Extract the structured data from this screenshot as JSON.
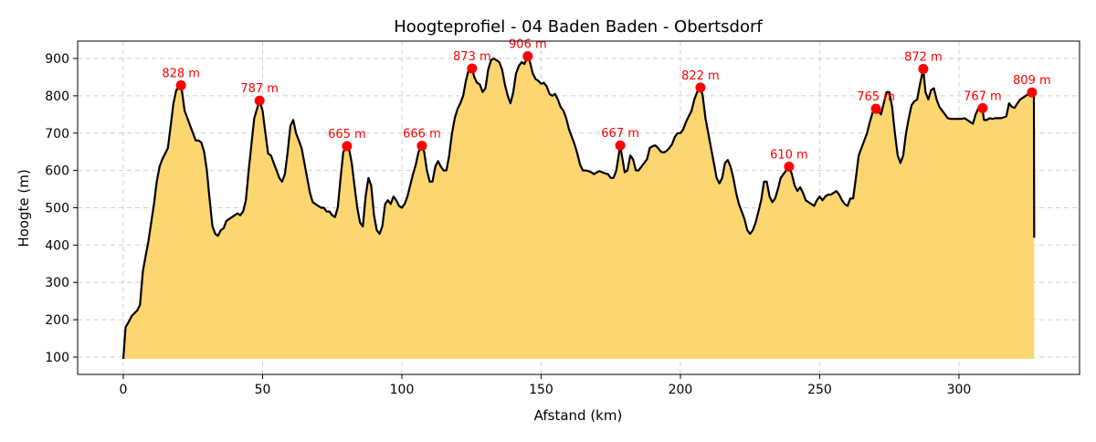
{
  "chart_data": {
    "type": "area",
    "title": "Hoogteprofiel - 04 Baden Baden - Obertsdorf",
    "xlabel": "Afstand (km)",
    "ylabel": "Hoogte (m)",
    "xlim": [
      -16.4,
      343.3
    ],
    "ylim": [
      53.5,
      946.5
    ],
    "xticks": [
      0,
      50,
      100,
      150,
      200,
      250,
      300
    ],
    "yticks": [
      100,
      200,
      300,
      400,
      500,
      600,
      700,
      800,
      900
    ],
    "grid": true,
    "colors": {
      "fill": "#fcd468",
      "line": "#000000",
      "peak": "#ff0000",
      "grid": "#d0d0d0"
    },
    "fill_baseline": 95,
    "x": [
      0,
      0.8,
      2,
      3,
      5,
      6,
      7,
      8,
      9,
      10,
      11,
      12,
      13,
      14,
      15,
      16,
      17,
      18,
      19,
      20.7,
      21,
      22,
      23,
      24,
      25,
      26,
      27,
      28,
      29,
      30,
      31,
      32,
      33,
      34,
      35,
      36,
      37,
      38,
      40,
      41,
      42,
      43,
      44,
      45,
      46,
      47,
      48.9,
      50,
      51,
      52,
      53,
      54,
      55,
      56,
      57,
      58,
      59,
      60,
      61,
      62,
      63,
      64,
      65,
      66,
      67,
      68,
      70,
      71,
      72,
      73,
      74,
      75,
      76,
      77,
      78,
      79,
      80.3,
      81,
      82,
      83,
      84,
      85,
      86,
      87,
      88,
      89,
      90,
      91,
      92,
      93,
      94,
      95,
      96,
      97,
      98,
      99,
      100,
      101,
      102,
      103,
      104,
      105,
      106,
      107.2,
      108,
      109,
      110,
      111,
      112,
      113,
      114,
      115,
      116,
      117,
      118,
      119,
      120,
      121,
      122,
      123,
      124,
      125.2,
      126,
      127,
      128,
      129,
      130,
      131,
      132,
      133,
      134,
      135,
      136,
      137,
      138,
      139,
      140,
      141,
      142,
      143,
      144,
      145.2,
      146,
      147,
      148,
      149,
      150,
      151,
      152,
      153,
      154,
      155,
      156,
      157,
      158,
      159,
      160,
      161,
      162,
      163,
      164,
      165,
      166,
      167,
      168,
      169,
      170,
      171,
      172,
      173,
      174,
      175,
      176,
      177,
      178.4,
      179,
      180,
      181,
      182,
      183,
      184,
      185,
      186,
      187,
      188,
      189,
      190,
      191,
      192,
      193,
      194,
      195,
      196,
      197,
      198,
      199,
      200,
      201,
      202,
      203,
      204,
      205,
      206,
      207.2,
      208,
      209,
      210,
      211,
      212,
      213,
      214,
      215,
      216,
      217,
      218,
      219,
      220,
      221,
      222,
      223,
      224,
      225,
      226,
      227,
      228,
      229,
      230,
      231,
      232,
      233,
      234,
      235,
      236,
      237,
      238,
      239,
      240,
      241,
      242,
      243,
      244,
      245,
      246,
      247,
      248,
      249,
      250,
      251,
      252,
      253,
      254,
      255,
      256,
      257,
      258,
      259,
      260,
      261,
      262,
      263,
      264,
      265,
      266,
      267,
      268,
      269,
      270.2,
      271,
      272,
      273,
      274,
      275,
      276,
      277,
      278,
      279,
      280,
      281,
      282,
      283,
      284,
      285,
      286,
      287.2,
      288,
      289,
      290,
      291,
      292,
      293,
      294,
      295,
      296,
      297,
      298,
      299,
      300,
      301,
      302,
      303,
      304,
      305,
      306,
      307,
      308.5,
      309,
      310,
      311,
      312,
      313,
      314,
      315,
      316,
      317,
      318,
      319,
      320,
      321,
      322,
      323,
      324,
      325,
      326.2,
      326.9,
      327
    ],
    "y": [
      95,
      180,
      195,
      210,
      225,
      240,
      330,
      370,
      410,
      460,
      510,
      570,
      610,
      630,
      645,
      660,
      720,
      780,
      815,
      828,
      815,
      760,
      740,
      720,
      700,
      680,
      680,
      675,
      650,
      600,
      520,
      450,
      430,
      425,
      440,
      445,
      465,
      470,
      480,
      485,
      480,
      490,
      520,
      600,
      670,
      740,
      787,
      760,
      700,
      645,
      640,
      620,
      600,
      580,
      570,
      590,
      650,
      720,
      735,
      700,
      680,
      660,
      620,
      580,
      540,
      515,
      505,
      500,
      500,
      490,
      490,
      480,
      475,
      500,
      580,
      650,
      665,
      660,
      620,
      560,
      500,
      460,
      450,
      530,
      580,
      560,
      480,
      440,
      430,
      450,
      510,
      520,
      510,
      530,
      520,
      505,
      500,
      510,
      530,
      560,
      590,
      615,
      650,
      666,
      650,
      600,
      570,
      570,
      610,
      625,
      610,
      600,
      600,
      640,
      700,
      740,
      765,
      780,
      800,
      840,
      870,
      873,
      850,
      835,
      830,
      810,
      820,
      870,
      895,
      900,
      895,
      890,
      870,
      830,
      800,
      780,
      810,
      860,
      880,
      890,
      885,
      906,
      890,
      860,
      845,
      840,
      832,
      835,
      825,
      805,
      800,
      805,
      790,
      770,
      760,
      740,
      710,
      690,
      670,
      645,
      615,
      600,
      600,
      598,
      595,
      590,
      595,
      598,
      595,
      592,
      590,
      580,
      580,
      600,
      667,
      640,
      595,
      600,
      640,
      630,
      600,
      600,
      610,
      620,
      630,
      660,
      665,
      667,
      660,
      650,
      648,
      652,
      660,
      670,
      690,
      700,
      700,
      710,
      730,
      745,
      760,
      790,
      810,
      822,
      800,
      740,
      700,
      660,
      620,
      580,
      565,
      580,
      620,
      628,
      610,
      580,
      540,
      510,
      490,
      470,
      440,
      430,
      440,
      460,
      490,
      520,
      570,
      570,
      530,
      515,
      525,
      550,
      580,
      590,
      600,
      610,
      590,
      560,
      545,
      555,
      540,
      520,
      515,
      510,
      505,
      520,
      530,
      520,
      530,
      535,
      535,
      540,
      545,
      535,
      520,
      510,
      505,
      525,
      525,
      580,
      640,
      660,
      680,
      700,
      730,
      755,
      765,
      760,
      750,
      780,
      810,
      810,
      770,
      700,
      640,
      620,
      640,
      700,
      740,
      775,
      785,
      790,
      830,
      872,
      810,
      790,
      815,
      820,
      790,
      770,
      760,
      750,
      740,
      738,
      738,
      738,
      738,
      738,
      740,
      735,
      730,
      725,
      750,
      767,
      760,
      735,
      735,
      740,
      738,
      740,
      740,
      740,
      742,
      745,
      780,
      770,
      768,
      780,
      790,
      795,
      800,
      805,
      809,
      805,
      420
    ],
    "peaks": [
      {
        "x": 20.7,
        "y": 828,
        "label": "828 m"
      },
      {
        "x": 48.9,
        "y": 787,
        "label": "787 m"
      },
      {
        "x": 80.3,
        "y": 665,
        "label": "665 m"
      },
      {
        "x": 107.2,
        "y": 666,
        "label": "666 m"
      },
      {
        "x": 125.2,
        "y": 873,
        "label": "873 m"
      },
      {
        "x": 145.2,
        "y": 906,
        "label": "906 m"
      },
      {
        "x": 178.4,
        "y": 667,
        "label": "667 m"
      },
      {
        "x": 207.2,
        "y": 822,
        "label": "822 m"
      },
      {
        "x": 239,
        "y": 610,
        "label": "610 m"
      },
      {
        "x": 270.2,
        "y": 765,
        "label": "765 m"
      },
      {
        "x": 287.2,
        "y": 872,
        "label": "872 m"
      },
      {
        "x": 308.5,
        "y": 767,
        "label": "767 m"
      },
      {
        "x": 326.2,
        "y": 809,
        "label": "809 m"
      }
    ]
  }
}
